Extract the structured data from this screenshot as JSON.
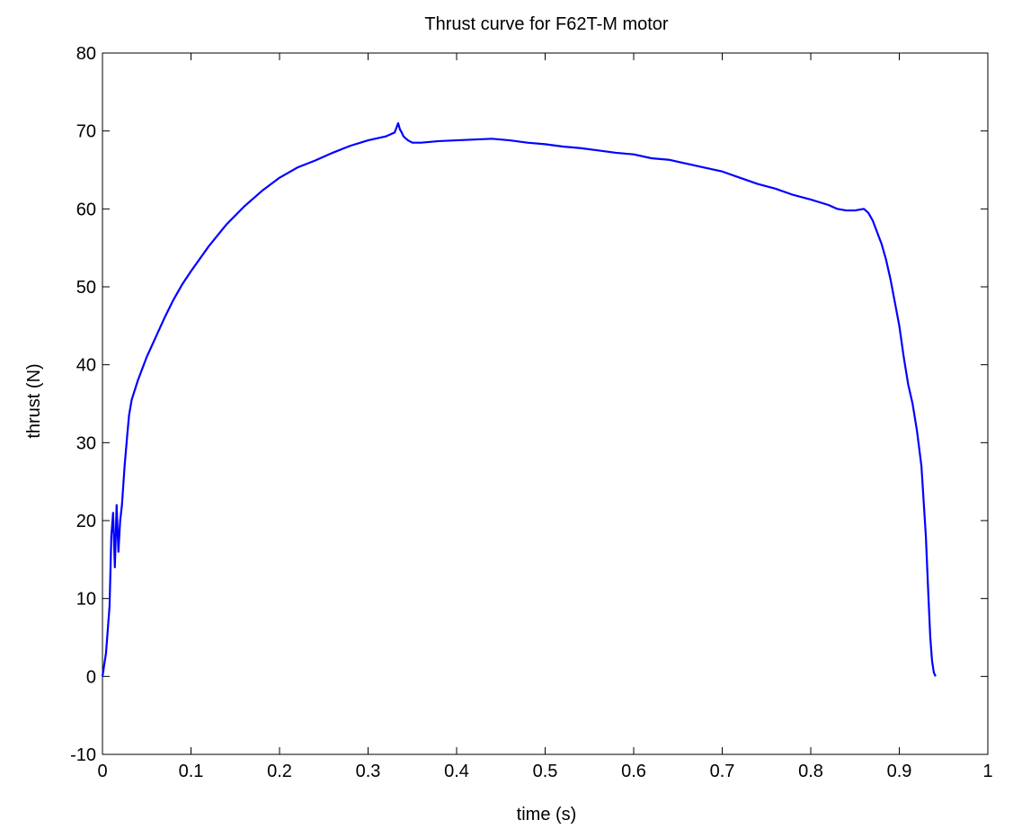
{
  "chart_data": {
    "type": "line",
    "title": "Thrust curve for F62T-M motor",
    "xlabel": "time (s)",
    "ylabel": "thrust (N)",
    "xlim": [
      0,
      1
    ],
    "ylim": [
      -10,
      80
    ],
    "grid": false,
    "x_ticks": [
      "0",
      "0.1",
      "0.2",
      "0.3",
      "0.4",
      "0.5",
      "0.6",
      "0.7",
      "0.8",
      "0.9",
      "1"
    ],
    "y_ticks": [
      "-10",
      "0",
      "10",
      "20",
      "30",
      "40",
      "50",
      "60",
      "70",
      "80"
    ],
    "line_color": "#0000ff",
    "series": [
      {
        "x": [
          0.0,
          0.004,
          0.008,
          0.01,
          0.012,
          0.014,
          0.016,
          0.018,
          0.02,
          0.022,
          0.025,
          0.028,
          0.03,
          0.033,
          0.04,
          0.05,
          0.06,
          0.07,
          0.08,
          0.09,
          0.1,
          0.12,
          0.14,
          0.16,
          0.18,
          0.2,
          0.22,
          0.24,
          0.26,
          0.28,
          0.3,
          0.32,
          0.33,
          0.334,
          0.336,
          0.338,
          0.34,
          0.345,
          0.35,
          0.36,
          0.38,
          0.4,
          0.42,
          0.44,
          0.46,
          0.48,
          0.5,
          0.52,
          0.54,
          0.56,
          0.58,
          0.6,
          0.62,
          0.64,
          0.66,
          0.68,
          0.7,
          0.72,
          0.74,
          0.76,
          0.78,
          0.8,
          0.82,
          0.83,
          0.84,
          0.85,
          0.86,
          0.865,
          0.87,
          0.875,
          0.88,
          0.885,
          0.89,
          0.895,
          0.9,
          0.905,
          0.91,
          0.915,
          0.92,
          0.925,
          0.93,
          0.933,
          0.935,
          0.937,
          0.939,
          0.941
        ],
        "y": [
          0.0,
          3.0,
          9.0,
          18.0,
          21.0,
          14.0,
          22.0,
          16.0,
          20.0,
          22.0,
          27.0,
          31.0,
          33.5,
          35.5,
          38.0,
          41.0,
          43.5,
          46.0,
          48.3,
          50.3,
          52.0,
          55.2,
          58.0,
          60.3,
          62.3,
          64.0,
          65.3,
          66.2,
          67.2,
          68.1,
          68.8,
          69.3,
          69.8,
          71.0,
          70.2,
          69.8,
          69.3,
          68.8,
          68.5,
          68.5,
          68.7,
          68.8,
          68.9,
          69.0,
          68.8,
          68.5,
          68.3,
          68.0,
          67.8,
          67.5,
          67.2,
          67.0,
          66.5,
          66.3,
          65.8,
          65.3,
          64.8,
          64.0,
          63.2,
          62.6,
          61.8,
          61.2,
          60.5,
          60.0,
          59.8,
          59.8,
          60.0,
          59.5,
          58.5,
          57.0,
          55.5,
          53.5,
          51.0,
          48.0,
          45.0,
          41.0,
          37.5,
          35.0,
          31.5,
          27.0,
          18.0,
          10.0,
          5.0,
          2.0,
          0.5,
          0.0
        ]
      }
    ]
  }
}
